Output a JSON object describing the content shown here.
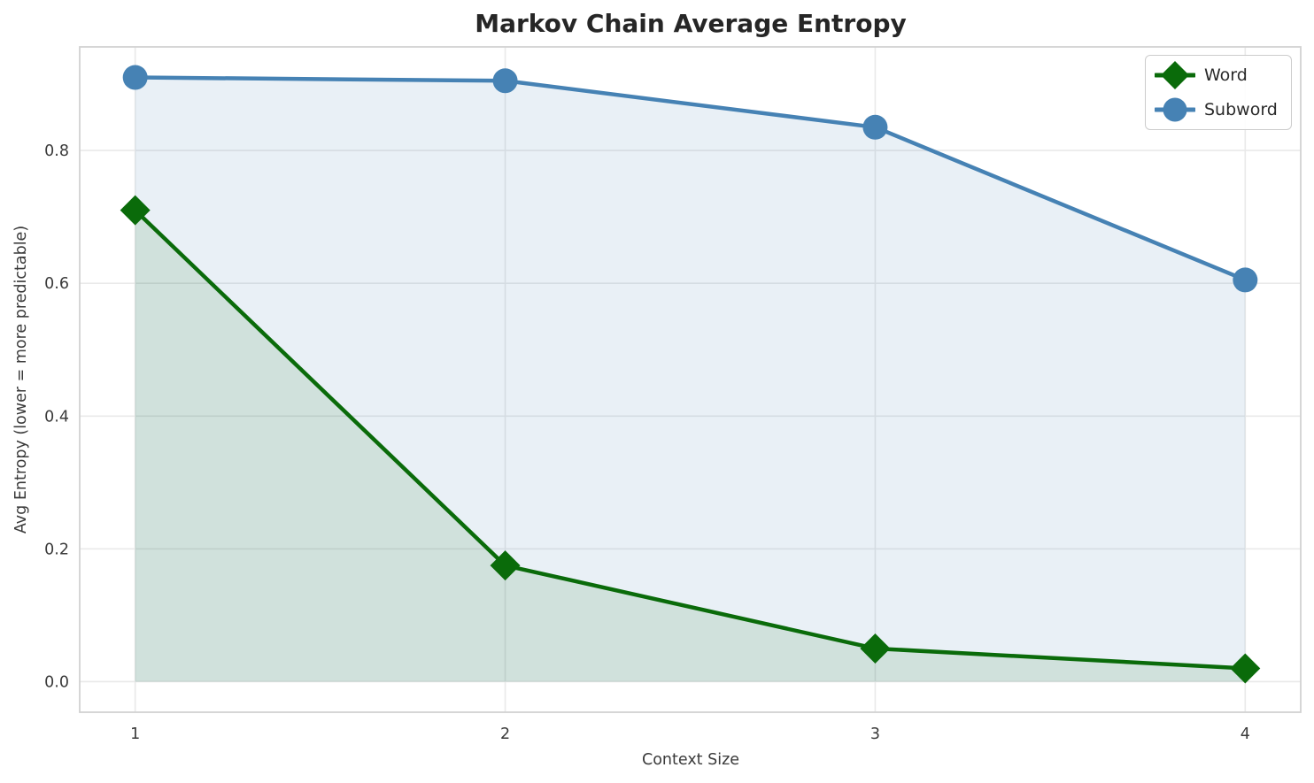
{
  "title": "Markov Chain Average Entropy",
  "chart_data": {
    "type": "line",
    "x": [
      1,
      2,
      3,
      4
    ],
    "series": [
      {
        "name": "Word",
        "values": [
          0.71,
          0.175,
          0.05,
          0.02
        ],
        "color": "#0a6b0a",
        "marker": "diamond",
        "fill_alpha": 0.11
      },
      {
        "name": "Subword",
        "values": [
          0.91,
          0.905,
          0.835,
          0.605
        ],
        "color": "#4682b4",
        "marker": "circle",
        "fill_alpha": 0.12
      }
    ],
    "title": "Markov Chain Average Entropy",
    "xlabel": "Context Size",
    "ylabel": "Avg Entropy (lower = more predictable)",
    "xticks": [
      "1",
      "2",
      "3",
      "4"
    ],
    "yticks": [
      0.0,
      0.2,
      0.4,
      0.6,
      0.8
    ],
    "ytick_labels": [
      "0.0",
      "0.2",
      "0.4",
      "0.6",
      "0.8"
    ],
    "xlim": [
      0.85,
      4.15
    ],
    "ylim": [
      -0.046,
      0.956
    ],
    "grid": true,
    "area_fill_baseline": 0,
    "legend_position": "top-right",
    "legend_entries": [
      "Word",
      "Subword"
    ]
  },
  "colors": {
    "grid": "#e9e9e9",
    "spine": "#d2d2d2",
    "title_text": "#262626",
    "tick_text": "#3a3a3a",
    "legend_border": "#cccccc"
  }
}
